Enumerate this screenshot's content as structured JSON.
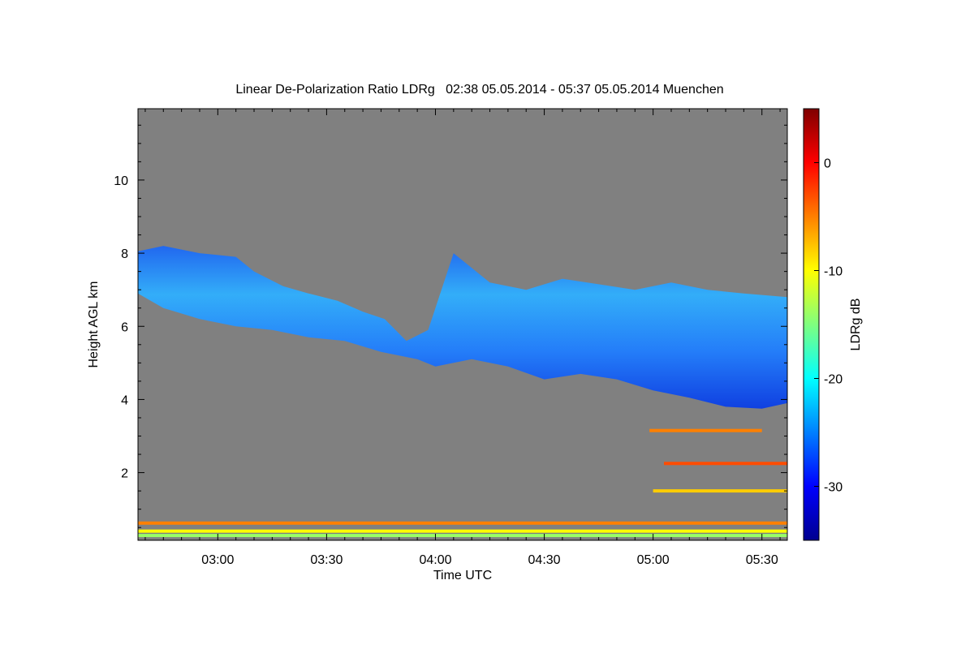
{
  "chart_data": {
    "type": "heatmap",
    "title": "Linear De-Polarization Ratio LDRg   02:38 05.05.2014 - 05:37 05.05.2014 Muenchen",
    "xlabel": "Time UTC",
    "ylabel": "Height AGL km",
    "colorbar_label": "LDRg dB",
    "x_range": [
      "02:38",
      "05:37"
    ],
    "ylim": [
      0.15,
      11.95
    ],
    "x_ticks": [
      {
        "label": "03:00",
        "minutes": 180
      },
      {
        "label": "03:30",
        "minutes": 210
      },
      {
        "label": "04:00",
        "minutes": 240
      },
      {
        "label": "04:30",
        "minutes": 270
      },
      {
        "label": "05:00",
        "minutes": 300
      },
      {
        "label": "05:30",
        "minutes": 330
      }
    ],
    "y_ticks": [
      {
        "label": "2",
        "value": 2
      },
      {
        "label": "4",
        "value": 4
      },
      {
        "label": "6",
        "value": 6
      },
      {
        "label": "8",
        "value": 8
      },
      {
        "label": "10",
        "value": 10
      }
    ],
    "colorbar_range": [
      -35,
      5
    ],
    "colorbar_ticks": [
      {
        "label": "0",
        "value": 0
      },
      {
        "label": "-10",
        "value": -10
      },
      {
        "label": "-20",
        "value": -20
      },
      {
        "label": "-30",
        "value": -30
      }
    ],
    "colormap": "jet",
    "background_color": "#808080",
    "cloud_layer": {
      "top_km": [
        [
          158,
          8.05
        ],
        [
          165,
          8.2
        ],
        [
          175,
          8.0
        ],
        [
          185,
          7.9
        ],
        [
          190,
          7.5
        ],
        [
          198,
          7.1
        ],
        [
          205,
          6.9
        ],
        [
          213,
          6.7
        ],
        [
          220,
          6.4
        ],
        [
          226,
          6.2
        ],
        [
          232,
          5.6
        ],
        [
          238,
          5.9
        ],
        [
          245,
          8.0
        ],
        [
          255,
          7.2
        ],
        [
          265,
          7.0
        ],
        [
          275,
          7.3
        ],
        [
          285,
          7.15
        ],
        [
          295,
          7.0
        ],
        [
          305,
          7.2
        ],
        [
          315,
          7.0
        ],
        [
          325,
          6.9
        ],
        [
          337,
          6.8
        ]
      ],
      "base_km": [
        [
          158,
          6.9
        ],
        [
          165,
          6.5
        ],
        [
          175,
          6.2
        ],
        [
          185,
          6.0
        ],
        [
          195,
          5.9
        ],
        [
          205,
          5.7
        ],
        [
          215,
          5.6
        ],
        [
          225,
          5.3
        ],
        [
          235,
          5.1
        ],
        [
          240,
          4.9
        ],
        [
          250,
          5.1
        ],
        [
          260,
          4.9
        ],
        [
          270,
          4.55
        ],
        [
          280,
          4.7
        ],
        [
          290,
          4.55
        ],
        [
          300,
          4.25
        ],
        [
          310,
          4.05
        ],
        [
          320,
          3.8
        ],
        [
          330,
          3.75
        ],
        [
          337,
          3.9
        ]
      ],
      "typical_ldr_db": -25
    },
    "low_layers": [
      {
        "height_km": 0.62,
        "start_minute": 158,
        "end_minute": 337,
        "ldr_db": -5
      },
      {
        "height_km": 0.4,
        "start_minute": 158,
        "end_minute": 337,
        "ldr_db": -10
      },
      {
        "height_km": 0.28,
        "start_minute": 158,
        "end_minute": 337,
        "ldr_db": -14
      },
      {
        "height_km": 3.15,
        "start_minute": 299,
        "end_minute": 330,
        "ldr_db": -5
      },
      {
        "height_km": 2.25,
        "start_minute": 303,
        "end_minute": 337,
        "ldr_db": -3
      },
      {
        "height_km": 1.5,
        "start_minute": 300,
        "end_minute": 337,
        "ldr_db": -8
      }
    ]
  }
}
